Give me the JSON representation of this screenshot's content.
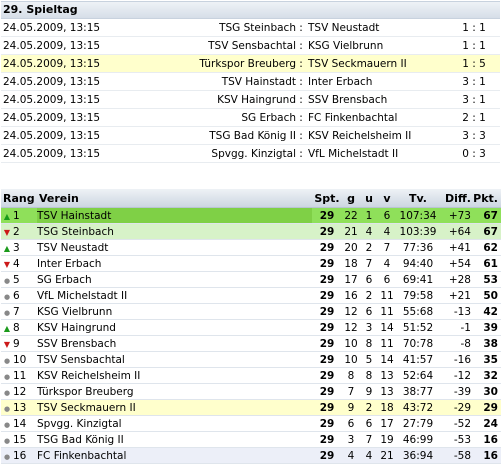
{
  "matchday": {
    "title": "29. Spieltag",
    "matches": [
      {
        "date": "24.05.2009, 13:15",
        "home": "TSG Steinbach",
        "away": "TSV Neustadt",
        "score": "1 : 1",
        "highlight": false
      },
      {
        "date": "24.05.2009, 13:15",
        "home": "TSV Sensbachtal",
        "away": "KSG Vielbrunn",
        "score": "1 : 1",
        "highlight": false
      },
      {
        "date": "24.05.2009, 13:15",
        "home": "Türkspor Breuberg",
        "away": "TSV Seckmauern II",
        "score": "1 : 5",
        "highlight": true
      },
      {
        "date": "24.05.2009, 13:15",
        "home": "TSV Hainstadt",
        "away": "Inter Erbach",
        "score": "3 : 1",
        "highlight": false
      },
      {
        "date": "24.05.2009, 13:15",
        "home": "KSV Haingrund",
        "away": "SSV Brensbach",
        "score": "3 : 1",
        "highlight": false
      },
      {
        "date": "24.05.2009, 13:15",
        "home": "SG Erbach",
        "away": "FC Finkenbachtal",
        "score": "2 : 1",
        "highlight": false
      },
      {
        "date": "24.05.2009, 13:15",
        "home": "TSG Bad König II",
        "away": "KSV Reichelsheim II",
        "score": "3 : 3",
        "highlight": false
      },
      {
        "date": "24.05.2009, 13:15",
        "home": "Spvgg. Kinzigtal",
        "away": "VfL Michelstadt II",
        "score": "0 : 3",
        "highlight": false
      }
    ],
    "separator": ":"
  },
  "standings": {
    "headers": {
      "rank": "Rang",
      "team": "Verein",
      "played": "Spt.",
      "won": "g",
      "draw": "u",
      "lost": "v",
      "goals": "Tv.",
      "diff": "Diff.",
      "points": "Pkt."
    },
    "rows": [
      {
        "rank": "1",
        "trend": "up",
        "team": "TSV Hainstadt",
        "played": "29",
        "won": "22",
        "draw": "1",
        "lost": "6",
        "goals": "107:34",
        "diff": "+73",
        "points": "67",
        "style": "lead"
      },
      {
        "rank": "2",
        "trend": "down",
        "team": "TSG Steinbach",
        "played": "29",
        "won": "21",
        "draw": "4",
        "lost": "4",
        "goals": "103:39",
        "diff": "+64",
        "points": "67",
        "style": "second"
      },
      {
        "rank": "3",
        "trend": "up",
        "team": "TSV Neustadt",
        "played": "29",
        "won": "20",
        "draw": "2",
        "lost": "7",
        "goals": "77:36",
        "diff": "+41",
        "points": "62",
        "style": ""
      },
      {
        "rank": "4",
        "trend": "down",
        "team": "Inter Erbach",
        "played": "29",
        "won": "18",
        "draw": "7",
        "lost": "4",
        "goals": "94:40",
        "diff": "+54",
        "points": "61",
        "style": ""
      },
      {
        "rank": "5",
        "trend": "same",
        "team": "SG Erbach",
        "played": "29",
        "won": "17",
        "draw": "6",
        "lost": "6",
        "goals": "69:41",
        "diff": "+28",
        "points": "53",
        "style": ""
      },
      {
        "rank": "6",
        "trend": "same",
        "team": "VfL Michelstadt II",
        "played": "29",
        "won": "16",
        "draw": "2",
        "lost": "11",
        "goals": "79:58",
        "diff": "+21",
        "points": "50",
        "style": ""
      },
      {
        "rank": "7",
        "trend": "same",
        "team": "KSG Vielbrunn",
        "played": "29",
        "won": "12",
        "draw": "6",
        "lost": "11",
        "goals": "55:68",
        "diff": "-13",
        "points": "42",
        "style": ""
      },
      {
        "rank": "8",
        "trend": "up",
        "team": "KSV Haingrund",
        "played": "29",
        "won": "12",
        "draw": "3",
        "lost": "14",
        "goals": "51:52",
        "diff": "-1",
        "points": "39",
        "style": ""
      },
      {
        "rank": "9",
        "trend": "down",
        "team": "SSV Brensbach",
        "played": "29",
        "won": "10",
        "draw": "8",
        "lost": "11",
        "goals": "70:78",
        "diff": "-8",
        "points": "38",
        "style": ""
      },
      {
        "rank": "10",
        "trend": "same",
        "team": "TSV Sensbachtal",
        "played": "29",
        "won": "10",
        "draw": "5",
        "lost": "14",
        "goals": "41:57",
        "diff": "-16",
        "points": "35",
        "style": ""
      },
      {
        "rank": "11",
        "trend": "same",
        "team": "KSV Reichelsheim II",
        "played": "29",
        "won": "8",
        "draw": "8",
        "lost": "13",
        "goals": "52:64",
        "diff": "-12",
        "points": "32",
        "style": ""
      },
      {
        "rank": "12",
        "trend": "same",
        "team": "Türkspor Breuberg",
        "played": "29",
        "won": "7",
        "draw": "9",
        "lost": "13",
        "goals": "38:77",
        "diff": "-39",
        "points": "30",
        "style": ""
      },
      {
        "rank": "13",
        "trend": "same",
        "team": "TSV Seckmauern II",
        "played": "29",
        "won": "9",
        "draw": "2",
        "lost": "18",
        "goals": "43:72",
        "diff": "-29",
        "points": "29",
        "style": "hl"
      },
      {
        "rank": "14",
        "trend": "same",
        "team": "Spvgg. Kinzigtal",
        "played": "29",
        "won": "6",
        "draw": "6",
        "lost": "17",
        "goals": "27:79",
        "diff": "-52",
        "points": "24",
        "style": ""
      },
      {
        "rank": "15",
        "trend": "same",
        "team": "TSG Bad König II",
        "played": "29",
        "won": "3",
        "draw": "7",
        "lost": "19",
        "goals": "46:99",
        "diff": "-53",
        "points": "16",
        "style": ""
      },
      {
        "rank": "16",
        "trend": "same",
        "team": "FC Finkenbachtal",
        "played": "29",
        "won": "4",
        "draw": "4",
        "lost": "21",
        "goals": "36:94",
        "diff": "-58",
        "points": "16",
        "style": "last"
      }
    ]
  },
  "icons": {
    "up": "triangle-up-icon",
    "down": "triangle-down-icon",
    "same": "dot-icon"
  },
  "colors": {
    "leader": "#8fe05a",
    "second": "#d7f2c8",
    "highlight": "#ffffcc",
    "up": "#1a9a1a",
    "down": "#cc1a1a"
  }
}
